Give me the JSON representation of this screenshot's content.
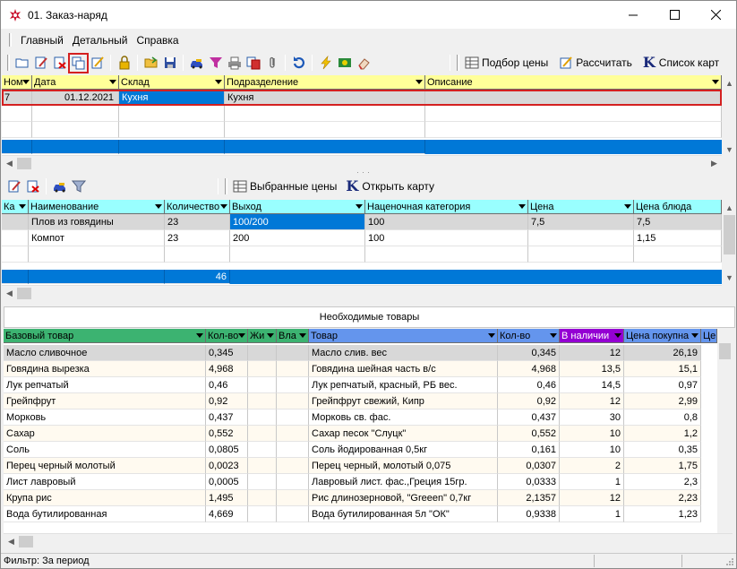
{
  "window": {
    "title": "01. Заказ-наряд",
    "minimize": "—",
    "maximize": "☐",
    "close": "✕"
  },
  "menu": {
    "items": [
      "Главный",
      "Детальный",
      "Справка"
    ]
  },
  "toolbar": {
    "buttons": [
      "folder-open-icon",
      "edit-document-icon",
      "delete-document-icon",
      "copy-document-icon",
      "edit-multi-icon",
      "lock-icon",
      "open-folder-icon",
      "save-icon",
      "car-icon",
      "filter-icon",
      "printer-icon",
      "copy-red-icon",
      "attach-icon",
      "refresh-icon",
      "lightning-icon",
      "money-icon",
      "eraser-icon"
    ],
    "price_select_label": "Подбор цены",
    "calculate_label": "Рассчитать",
    "card_list_label": "Список карт",
    "card_list_glyph": "K",
    "highlighted_button": "copy-document-icon"
  },
  "orders": {
    "headers": [
      "Ном",
      "Дата",
      "Склад",
      "Подразделение",
      "Описание"
    ],
    "rows": [
      {
        "num": "7",
        "date": "01.12.2021",
        "warehouse": "Кухня",
        "department": "Кухня",
        "description": ""
      }
    ],
    "header_color": "#ffff99",
    "selected_row_color": "#0078d7"
  },
  "details_toolbar": {
    "selected_prices_label": "Выбранные цены",
    "open_card_label": "Открыть карту",
    "open_card_glyph": "K"
  },
  "items": {
    "headers": [
      "Ка",
      "Наименование",
      "Количество",
      "Выход",
      "Наценочная категория",
      "Цена",
      "Цена блюда"
    ],
    "rows": [
      {
        "cat": "",
        "name": "Плов из говядины",
        "qty": "23",
        "output": "100/200",
        "markup": "100",
        "price": "7,5",
        "dish_price": "7,5"
      },
      {
        "cat": "",
        "name": "Компот",
        "qty": "23",
        "output": "200",
        "markup": "100",
        "price": "",
        "dish_price": "1,15"
      }
    ],
    "total_qty": "46",
    "header_color": "#99ffff"
  },
  "required": {
    "title": "Необходимые товары",
    "headers": [
      "Базовый товар",
      "Кол-во",
      "Жи",
      "Вла",
      "Товар",
      "Кол-во",
      "В наличии",
      "Цена покупна",
      "Це"
    ],
    "rows": [
      {
        "base": "Масло сливочное",
        "base_qty": "0,345",
        "product": "Масло слив. вес",
        "qty": "0,345",
        "stock": "12",
        "price": "26,19"
      },
      {
        "base": "Говядина вырезка",
        "base_qty": "4,968",
        "product": "Говядина шейная часть  в/с",
        "qty": "4,968",
        "stock": "13,5",
        "price": "15,1"
      },
      {
        "base": "Лук репчатый",
        "base_qty": "0,46",
        "product": "Лук репчатый, красный, РБ вес.",
        "qty": "0,46",
        "stock": "14,5",
        "price": "0,97"
      },
      {
        "base": "Грейпфрут",
        "base_qty": "0,92",
        "product": "Грейпфрут свежий, Кипр",
        "qty": "0,92",
        "stock": "12",
        "price": "2,99"
      },
      {
        "base": "Морковь",
        "base_qty": "0,437",
        "product": "Морковь св. фас.",
        "qty": "0,437",
        "stock": "30",
        "price": "0,8"
      },
      {
        "base": "Сахар",
        "base_qty": "0,552",
        "product": "Сахар песок \"Слуцк\"",
        "qty": "0,552",
        "stock": "10",
        "price": "1,2"
      },
      {
        "base": "Соль",
        "base_qty": "0,0805",
        "product": "Соль йодированная 0,5кг",
        "qty": "0,161",
        "stock": "10",
        "price": "0,35"
      },
      {
        "base": "Перец черный молотый",
        "base_qty": "0,0023",
        "product": "Перец черный, молотый 0,075",
        "qty": "0,0307",
        "stock": "2",
        "price": "1,75"
      },
      {
        "base": "Лист лавровый",
        "base_qty": "0,0005",
        "product": "Лавровый лист. фас.,Греция 15гр.",
        "qty": "0,0333",
        "stock": "1",
        "price": "2,3"
      },
      {
        "base": "Крупа рис",
        "base_qty": "1,495",
        "product": "Рис длинозерновой, \"Greeen\" 0,7кг",
        "qty": "2,1357",
        "stock": "12",
        "price": "2,23"
      },
      {
        "base": "Вода бутилированная",
        "base_qty": "4,669",
        "product": "Вода бутилированная 5л \"ОК\"",
        "qty": "0,9338",
        "stock": "1",
        "price": "1,23"
      }
    ],
    "base_header_color": "#3cb371",
    "product_header_color": "#6495ed",
    "stock_header_color": "#9400d3"
  },
  "status": {
    "filter_label": "Фильтр: За период"
  }
}
